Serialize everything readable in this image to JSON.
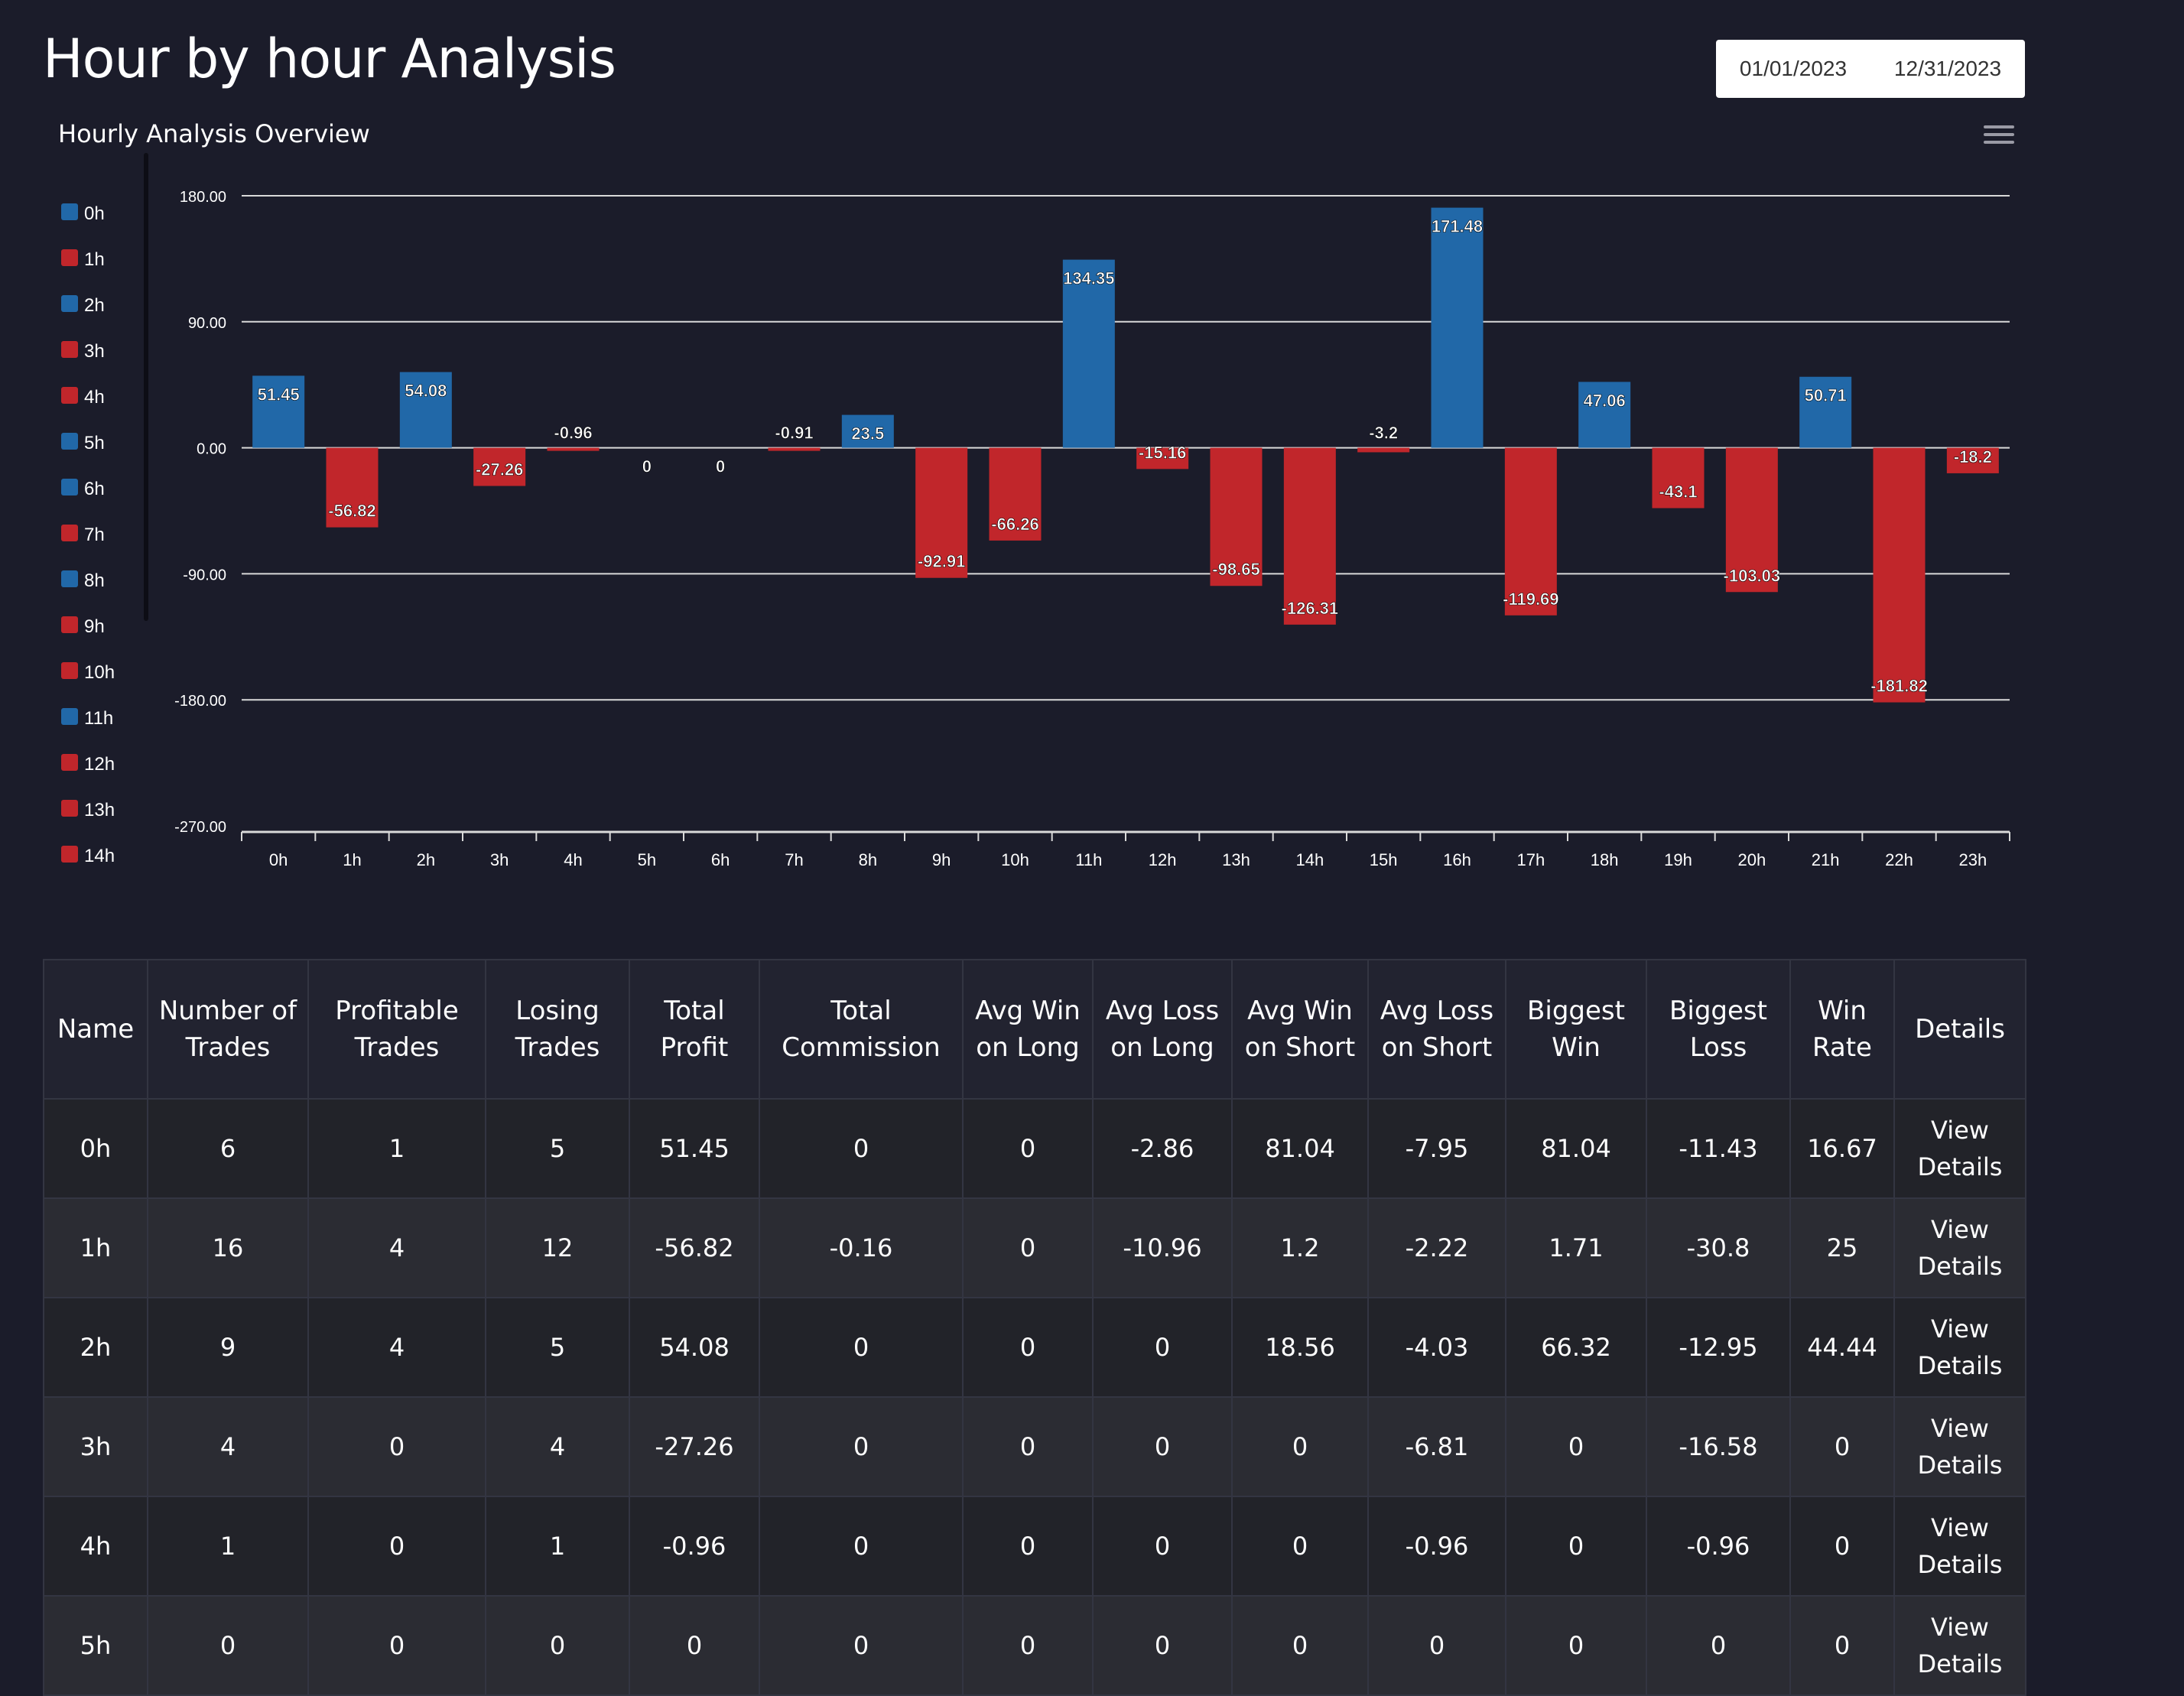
{
  "page": {
    "title": "Hour by hour Analysis"
  },
  "date_range": {
    "start": "01/01/2023",
    "end": "12/31/2023"
  },
  "chart_panel": {
    "title": "Hourly Analysis Overview",
    "menu_icon": "hamburger-menu-icon"
  },
  "colors": {
    "positive": "#2168a8",
    "negative": "#c1262b",
    "background": "#1b1c2a",
    "grid": "#d9d9d9"
  },
  "legend": {
    "items": [
      {
        "label": "0h",
        "color": "#2168a8"
      },
      {
        "label": "1h",
        "color": "#c1262b"
      },
      {
        "label": "2h",
        "color": "#2168a8"
      },
      {
        "label": "3h",
        "color": "#c1262b"
      },
      {
        "label": "4h",
        "color": "#c1262b"
      },
      {
        "label": "5h",
        "color": "#2168a8"
      },
      {
        "label": "6h",
        "color": "#2168a8"
      },
      {
        "label": "7h",
        "color": "#c1262b"
      },
      {
        "label": "8h",
        "color": "#2168a8"
      },
      {
        "label": "9h",
        "color": "#c1262b"
      },
      {
        "label": "10h",
        "color": "#c1262b"
      },
      {
        "label": "11h",
        "color": "#2168a8"
      },
      {
        "label": "12h",
        "color": "#c1262b"
      },
      {
        "label": "13h",
        "color": "#c1262b"
      },
      {
        "label": "14h",
        "color": "#c1262b"
      }
    ]
  },
  "chart_data": {
    "type": "bar",
    "title": "Hourly Analysis Overview",
    "categories": [
      "0h",
      "1h",
      "2h",
      "3h",
      "4h",
      "5h",
      "6h",
      "7h",
      "8h",
      "9h",
      "10h",
      "11h",
      "12h",
      "13h",
      "14h",
      "15h",
      "16h",
      "17h",
      "18h",
      "19h",
      "20h",
      "21h",
      "22h",
      "23h"
    ],
    "values": [
      51.45,
      -56.82,
      54.08,
      -27.26,
      -0.96,
      0,
      0,
      -0.91,
      23.5,
      -92.91,
      -66.26,
      134.35,
      -15.16,
      -98.65,
      -126.31,
      -3.2,
      171.48,
      -119.69,
      47.06,
      -43.1,
      -103.03,
      50.71,
      -181.82,
      -18.2
    ],
    "ylim": [
      -270,
      180
    ],
    "yticks": [
      "180.00",
      "90.00",
      "0.00",
      "-90.00",
      "-180.00",
      "-270.00"
    ],
    "ytick_values": [
      180,
      90,
      0,
      -90,
      -180,
      -270
    ],
    "legend_position": "left",
    "grid": true
  },
  "table": {
    "headers": [
      "Name",
      "Number of Trades",
      "Profitable Trades",
      "Losing Trades",
      "Total Profit",
      "Total Commission",
      "Avg Win on Long",
      "Avg Loss on Long",
      "Avg Win on Short",
      "Avg Loss on Short",
      "Biggest Win",
      "Biggest Loss",
      "Win Rate",
      "Details"
    ],
    "details_label": "View Details",
    "rows": [
      [
        "0h",
        "6",
        "1",
        "5",
        "51.45",
        "0",
        "0",
        "-2.86",
        "81.04",
        "-7.95",
        "81.04",
        "-11.43",
        "16.67"
      ],
      [
        "1h",
        "16",
        "4",
        "12",
        "-56.82",
        "-0.16",
        "0",
        "-10.96",
        "1.2",
        "-2.22",
        "1.71",
        "-30.8",
        "25"
      ],
      [
        "2h",
        "9",
        "4",
        "5",
        "54.08",
        "0",
        "0",
        "0",
        "18.56",
        "-4.03",
        "66.32",
        "-12.95",
        "44.44"
      ],
      [
        "3h",
        "4",
        "0",
        "4",
        "-27.26",
        "0",
        "0",
        "0",
        "0",
        "-6.81",
        "0",
        "-16.58",
        "0"
      ],
      [
        "4h",
        "1",
        "0",
        "1",
        "-0.96",
        "0",
        "0",
        "0",
        "0",
        "-0.96",
        "0",
        "-0.96",
        "0"
      ],
      [
        "5h",
        "0",
        "0",
        "0",
        "0",
        "0",
        "0",
        "0",
        "0",
        "0",
        "0",
        "0",
        "0"
      ]
    ]
  }
}
